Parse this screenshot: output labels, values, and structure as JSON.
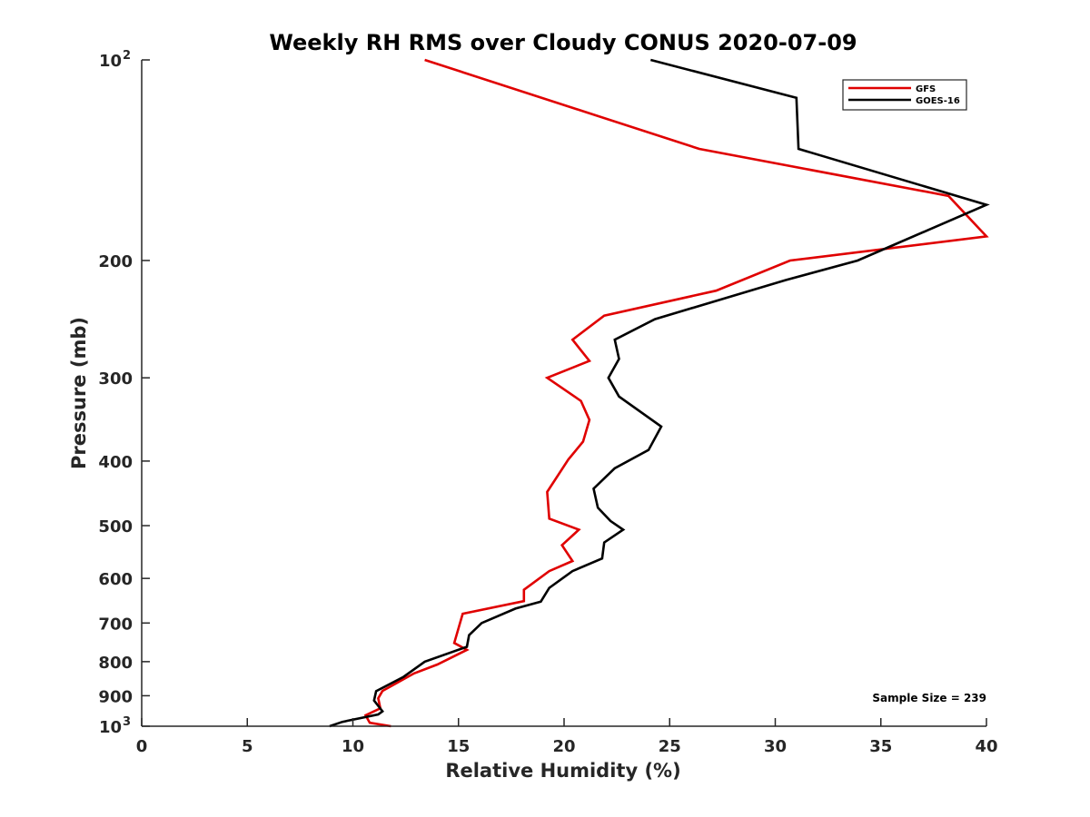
{
  "chart_data": {
    "type": "line",
    "title": "Weekly RH RMS over Cloudy CONUS 2020-07-09",
    "xlabel": "Relative Humidity (%)",
    "ylabel": "Pressure (mb)",
    "xlim": [
      0,
      40
    ],
    "ylim": [
      100,
      1000
    ],
    "y_scale": "log",
    "y_reversed": true,
    "grid": false,
    "legend_position": "top-right",
    "x_ticks": [
      {
        "value": 0,
        "label": "0"
      },
      {
        "value": 5,
        "label": "5"
      },
      {
        "value": 10,
        "label": "10"
      },
      {
        "value": 15,
        "label": "15"
      },
      {
        "value": 20,
        "label": "20"
      },
      {
        "value": 25,
        "label": "25"
      },
      {
        "value": 30,
        "label": "30"
      },
      {
        "value": 35,
        "label": "35"
      },
      {
        "value": 40,
        "label": "40"
      }
    ],
    "y_ticks": [
      {
        "value": 100,
        "label": "10",
        "sup": "2"
      },
      {
        "value": 200,
        "label": "200",
        "sup": ""
      },
      {
        "value": 300,
        "label": "300",
        "sup": ""
      },
      {
        "value": 400,
        "label": "400",
        "sup": ""
      },
      {
        "value": 500,
        "label": "500",
        "sup": ""
      },
      {
        "value": 600,
        "label": "600",
        "sup": ""
      },
      {
        "value": 700,
        "label": "700",
        "sup": ""
      },
      {
        "value": 800,
        "label": "800",
        "sup": ""
      },
      {
        "value": 900,
        "label": "900",
        "sup": ""
      },
      {
        "value": 1000,
        "label": "10",
        "sup": "3"
      }
    ],
    "series": [
      {
        "name": "GFS",
        "color": "#e00000",
        "x": [
          13.4,
          26.4,
          38.2,
          40.0,
          30.7,
          27.2,
          21.9,
          20.4,
          21.2,
          19.2,
          20.8,
          21.2,
          20.9,
          20.2,
          19.2,
          19.3,
          20.7,
          19.9,
          20.4,
          19.3,
          18.1,
          18.1,
          15.2,
          14.8,
          15.4,
          14.0,
          12.9,
          11.4,
          11.2,
          11.3,
          10.6,
          10.8,
          11.8
        ],
        "y": [
          100,
          136,
          160,
          184,
          200,
          222,
          242,
          263,
          283,
          300,
          325,
          347,
          374,
          398,
          445,
          488,
          507,
          535,
          565,
          585,
          624,
          649,
          678,
          750,
          768,
          808,
          833,
          885,
          908,
          940,
          963,
          988,
          1000
        ]
      },
      {
        "name": "GOES-16",
        "color": "#000000",
        "x": [
          24.1,
          31.0,
          31.1,
          40.0,
          33.9,
          30.5,
          24.3,
          22.4,
          22.6,
          22.1,
          22.6,
          24.6,
          24.0,
          22.4,
          21.4,
          21.6,
          22.2,
          22.8,
          21.9,
          21.8,
          20.4,
          19.3,
          18.9,
          17.7,
          16.1,
          15.5,
          15.4,
          13.4,
          12.4,
          11.1,
          11.0,
          11.4,
          11.2,
          9.5,
          8.9
        ],
        "y": [
          100,
          114,
          136,
          165,
          200,
          214,
          245,
          263,
          281,
          300,
          320,
          355,
          385,
          410,
          440,
          470,
          492,
          507,
          530,
          560,
          585,
          620,
          650,
          666,
          700,
          730,
          760,
          800,
          843,
          886,
          915,
          950,
          960,
          985,
          1000
        ]
      }
    ],
    "annotations": [
      {
        "text": "Sample Size = 239",
        "x": 37.3,
        "y": 905
      }
    ]
  }
}
